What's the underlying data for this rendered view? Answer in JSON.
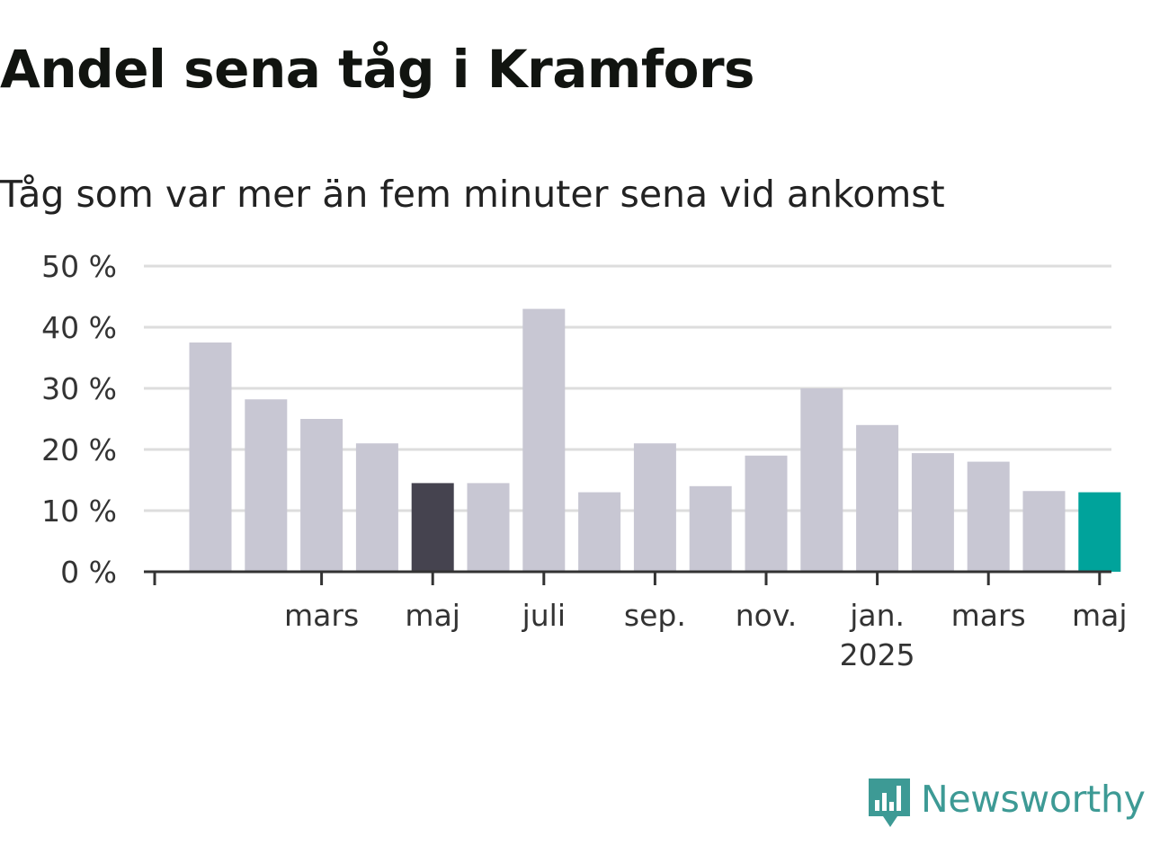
{
  "title": "Andel sena tåg i Kramfors",
  "subtitle": "Tåg som var mer än fem minuter sena vid ankomst",
  "logo": {
    "text": "Newsworthy",
    "icon": "bar-chart-speech-bubble-icon",
    "color": "#3d9a95"
  },
  "colors": {
    "default_bar": "#c8c7d3",
    "highlight_bar": "#45434f",
    "latest_bar": "#00a39b",
    "grid": "#dddddd",
    "axis": "#333333"
  },
  "chart_data": {
    "type": "bar",
    "categories": [
      "2024-01",
      "2024-02",
      "2024-03",
      "2024-04",
      "2024-05",
      "2024-06",
      "2024-07",
      "2024-08",
      "2024-09",
      "2024-10",
      "2024-11",
      "2024-12",
      "2025-01",
      "2025-02",
      "2025-03",
      "2025-04",
      "2025-05"
    ],
    "values": [
      37.5,
      28.2,
      25,
      21,
      14.5,
      14.5,
      43,
      13,
      21,
      14,
      19,
      30,
      24,
      19.4,
      18,
      13.2,
      13
    ],
    "highlight": {
      "2024-05": "highlight_bar",
      "2025-05": "latest_bar"
    },
    "ylim": [
      0,
      50
    ],
    "yticks": [
      0,
      10,
      20,
      30,
      40,
      50
    ],
    "ytick_labels": [
      "0 %",
      "10 %",
      "20 %",
      "30 %",
      "40 %",
      "50 %"
    ],
    "xtick_labels": [
      {
        "month": "2024-03",
        "label": "mars"
      },
      {
        "month": "2024-05",
        "label": "maj"
      },
      {
        "month": "2024-07",
        "label": "juli"
      },
      {
        "month": "2024-09",
        "label": "sep."
      },
      {
        "month": "2024-11",
        "label": "nov."
      },
      {
        "month": "2025-01",
        "label": "jan.",
        "sublabel": "2025"
      },
      {
        "month": "2025-03",
        "label": "mars"
      },
      {
        "month": "2025-05",
        "label": "maj"
      }
    ],
    "grid": true,
    "legend": "none",
    "xlabel": "",
    "ylabel": ""
  }
}
